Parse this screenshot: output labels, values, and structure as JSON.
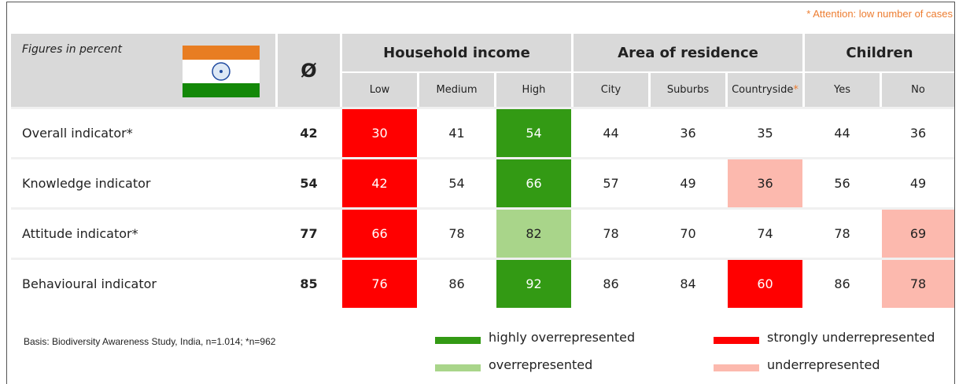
{
  "note": {
    "mark": "*",
    "text": "Attention: low number of cases"
  },
  "table": {
    "corner_label": "Figures in percent",
    "average_header": "Ø",
    "groups": [
      {
        "label": "Household income",
        "columns": [
          {
            "label": "Low"
          },
          {
            "label": "Medium"
          },
          {
            "label": "High"
          }
        ]
      },
      {
        "label": "Area of residence",
        "columns": [
          {
            "label": "City"
          },
          {
            "label": "Suburbs"
          },
          {
            "label": "Countryside",
            "mark": "*"
          }
        ]
      },
      {
        "label": "Children",
        "columns": [
          {
            "label": "Yes"
          },
          {
            "label": "No"
          }
        ]
      }
    ],
    "rows": [
      {
        "label": "Overall indicator*",
        "average": 42,
        "values": [
          30,
          41,
          54,
          44,
          36,
          35,
          44,
          36
        ],
        "colors": [
          "#ff0000",
          null,
          "#339a14",
          null,
          null,
          null,
          null,
          null
        ]
      },
      {
        "label": "Knowledge indicator",
        "average": 54,
        "values": [
          42,
          54,
          66,
          57,
          49,
          36,
          56,
          49
        ],
        "colors": [
          "#ff0000",
          null,
          "#339a14",
          null,
          null,
          "#fcb9ae",
          null,
          null
        ]
      },
      {
        "label": "Attitude indicator*",
        "average": 77,
        "values": [
          66,
          78,
          82,
          78,
          70,
          74,
          78,
          69
        ],
        "colors": [
          "#ff0000",
          null,
          "#a9d58a",
          null,
          null,
          null,
          null,
          "#fcb9ae"
        ]
      },
      {
        "label": "Behavioural indicator",
        "average": 85,
        "values": [
          76,
          86,
          92,
          86,
          84,
          60,
          86,
          78
        ],
        "colors": [
          "#ff0000",
          null,
          "#339a14",
          null,
          null,
          "#ff0000",
          null,
          "#fcb9ae"
        ]
      }
    ]
  },
  "footer": {
    "basis": "Basis: Biodiversity Awareness Study,  India, n=1.014; *n=962",
    "legend": [
      {
        "name": "highly overrepresented",
        "color": "#339a14"
      },
      {
        "name": "strongly underrepresented",
        "color": "#ff0000"
      },
      {
        "name": "overrepresented",
        "color": "#a9d58a"
      },
      {
        "name": "underrepresented",
        "color": "#fcb9ae"
      }
    ]
  }
}
